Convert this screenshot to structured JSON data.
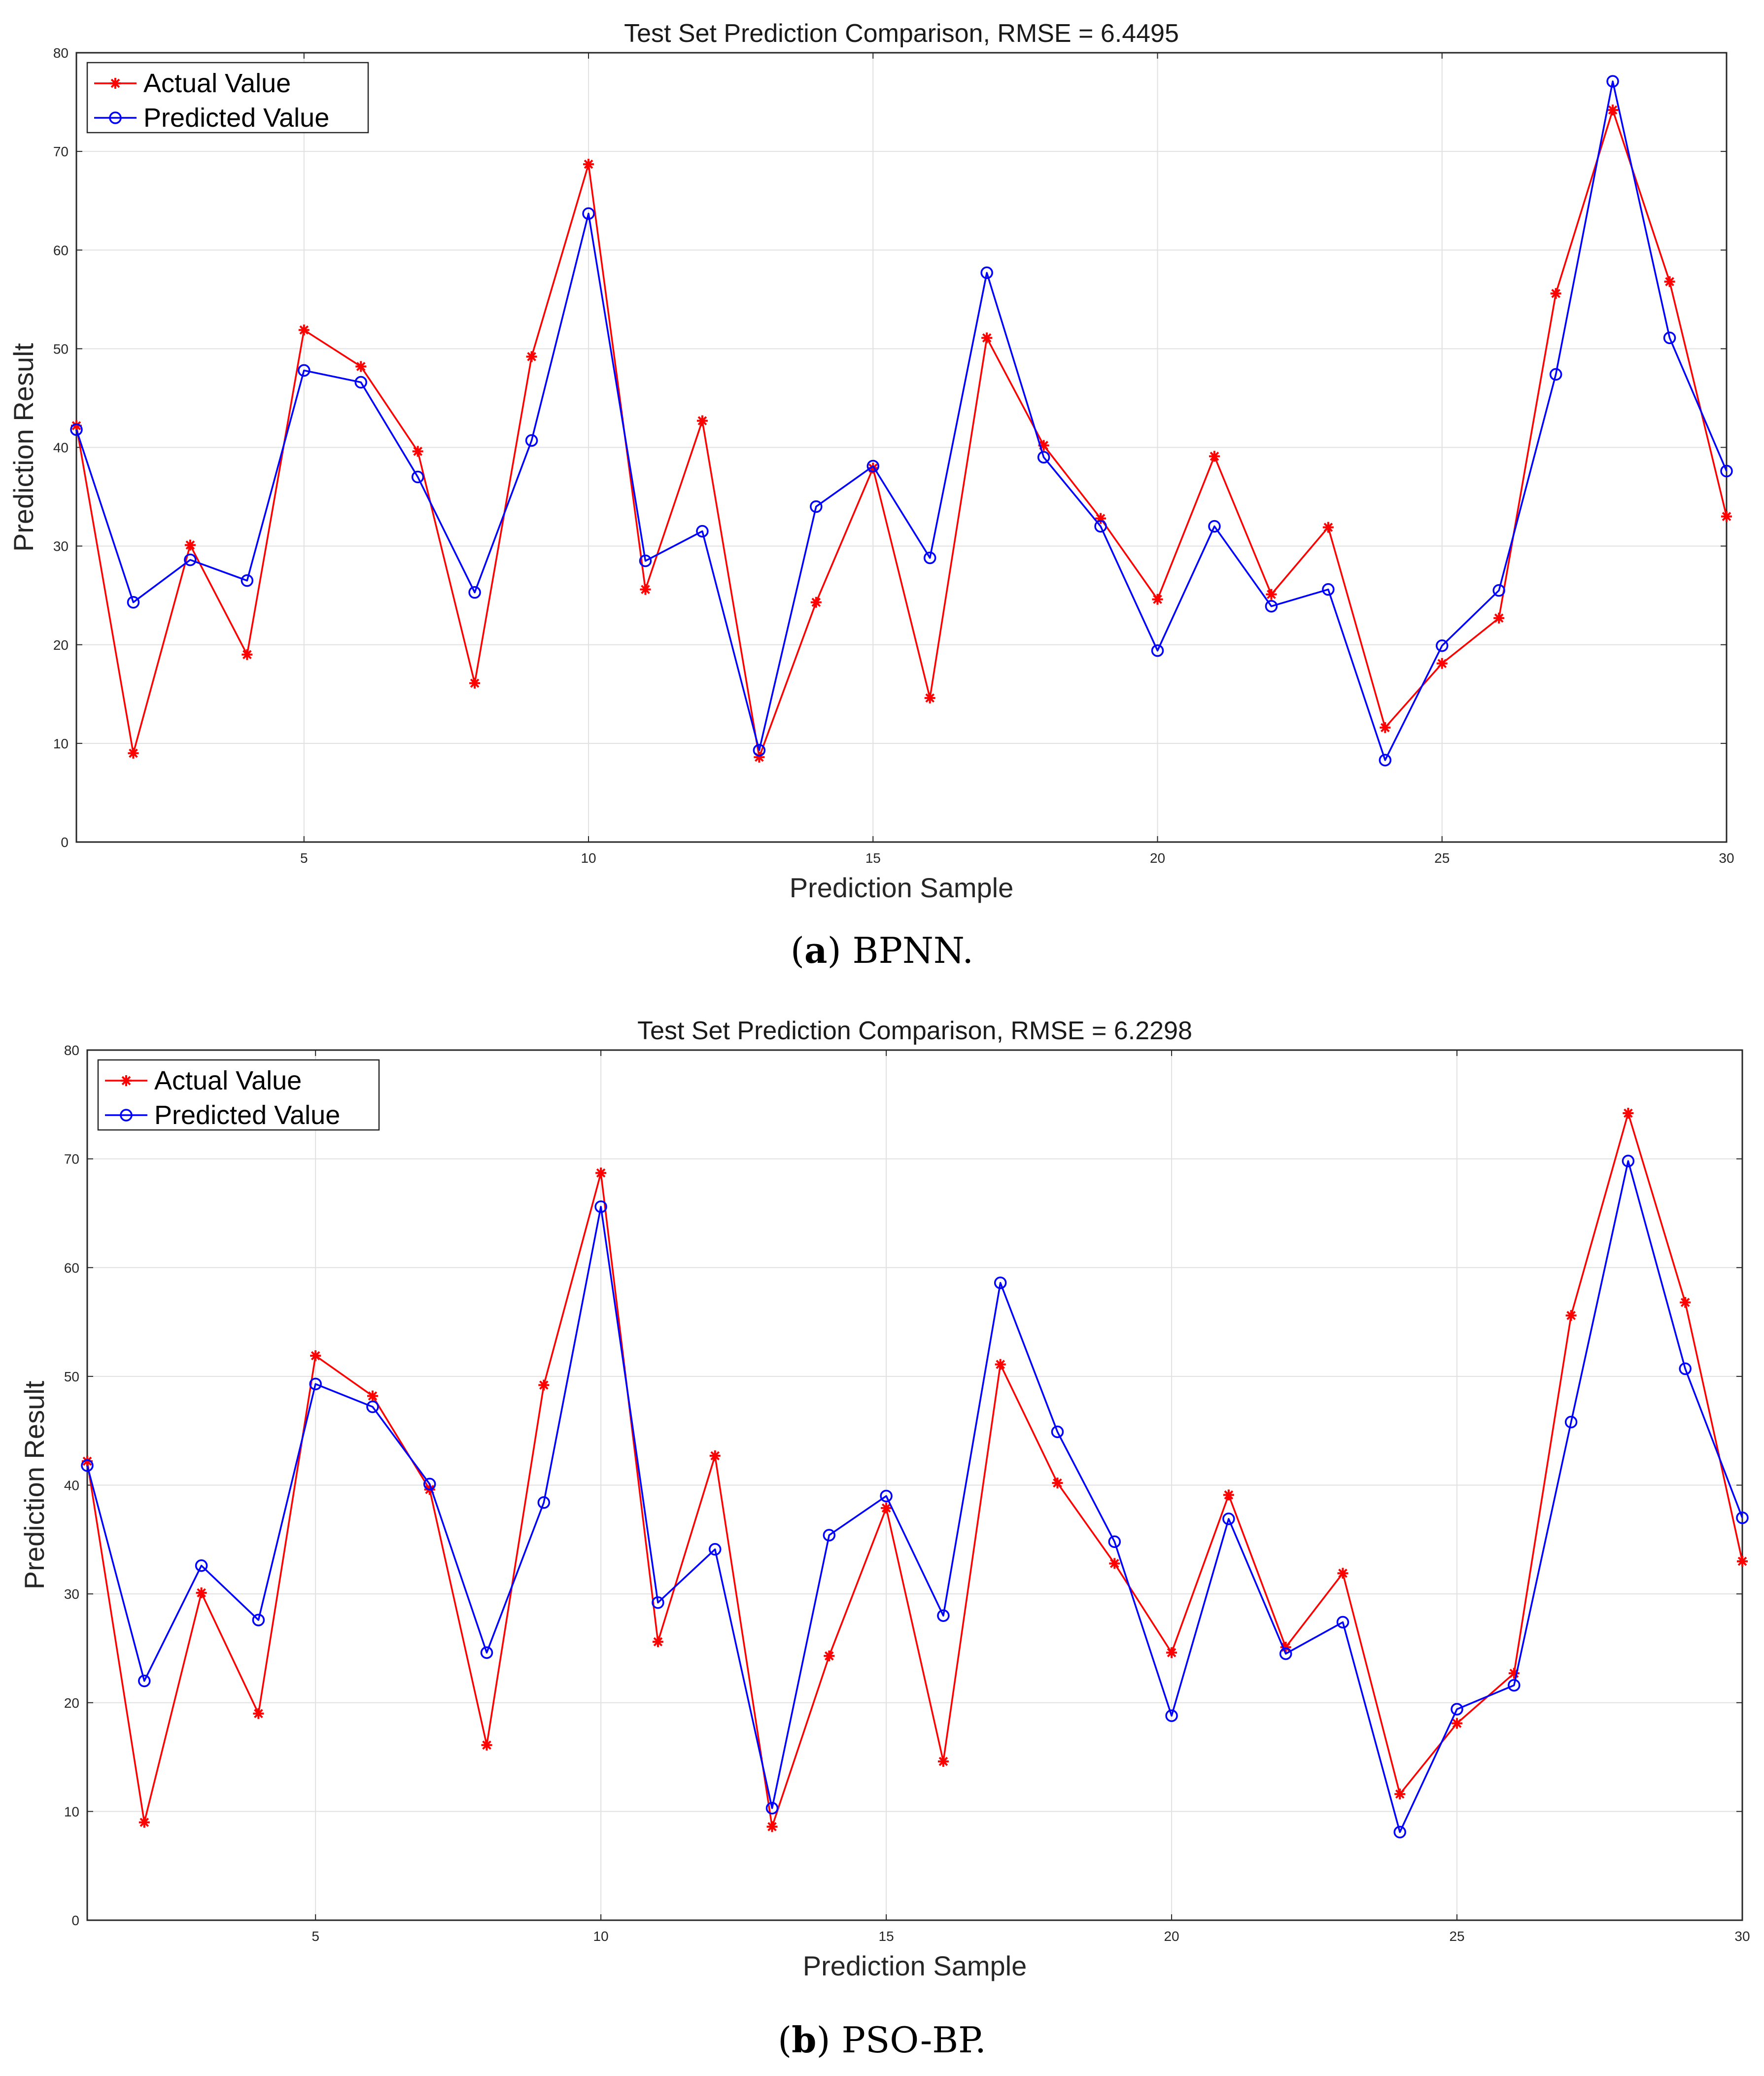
{
  "chart_data": [
    {
      "type": "line",
      "id": "a",
      "title": "Test Set Prediction Comparison, RMSE = 6.4495",
      "xlabel": "Prediction Sample",
      "ylabel": "Prediction Result",
      "xlim": [
        1,
        30
      ],
      "ylim": [
        0,
        80
      ],
      "xticks": [
        5,
        10,
        15,
        20,
        25,
        30
      ],
      "yticks": [
        0,
        10,
        20,
        30,
        40,
        50,
        60,
        70,
        80
      ],
      "grid": true,
      "legend_position": "top-left",
      "caption_letter": "a",
      "caption_text": " BPNN.",
      "x": [
        1,
        2,
        3,
        4,
        5,
        6,
        7,
        8,
        9,
        10,
        11,
        12,
        13,
        14,
        15,
        16,
        17,
        18,
        19,
        20,
        21,
        22,
        23,
        24,
        25,
        26,
        27,
        28,
        29,
        30
      ],
      "series": [
        {
          "name": "Actual Value",
          "color": "#ff0000",
          "marker": "star",
          "values": [
            42.2,
            9.0,
            30.1,
            19.0,
            51.9,
            48.2,
            39.6,
            16.1,
            49.2,
            68.7,
            25.6,
            42.7,
            8.6,
            24.3,
            37.9,
            14.6,
            51.1,
            40.2,
            32.8,
            24.6,
            39.1,
            25.1,
            31.9,
            11.6,
            18.1,
            22.7,
            55.6,
            74.2,
            56.8,
            33.0
          ]
        },
        {
          "name": "Predicted Value",
          "color": "#0000ff",
          "marker": "circle",
          "values": [
            41.8,
            24.3,
            28.6,
            26.5,
            47.8,
            46.6,
            37.0,
            25.3,
            40.7,
            63.7,
            28.5,
            31.5,
            9.3,
            34.0,
            38.1,
            28.8,
            57.7,
            39.0,
            32.0,
            19.4,
            32.0,
            23.9,
            25.6,
            8.3,
            19.9,
            25.5,
            47.4,
            77.1,
            51.1,
            37.6
          ]
        }
      ]
    },
    {
      "type": "line",
      "id": "b",
      "title": "Test Set Prediction Comparison, RMSE = 6.2298",
      "xlabel": "Prediction Sample",
      "ylabel": "Prediction Result",
      "xlim": [
        1,
        30
      ],
      "ylim": [
        0,
        80
      ],
      "xticks": [
        5,
        10,
        15,
        20,
        25,
        30
      ],
      "yticks": [
        0,
        10,
        20,
        30,
        40,
        50,
        60,
        70,
        80
      ],
      "grid": true,
      "legend_position": "top-left",
      "caption_letter": "b",
      "caption_text": " PSO-BP.",
      "x": [
        1,
        2,
        3,
        4,
        5,
        6,
        7,
        8,
        9,
        10,
        11,
        12,
        13,
        14,
        15,
        16,
        17,
        18,
        19,
        20,
        21,
        22,
        23,
        24,
        25,
        26,
        27,
        28,
        29,
        30
      ],
      "series": [
        {
          "name": "Actual Value",
          "color": "#ff0000",
          "marker": "star",
          "values": [
            42.2,
            9.0,
            30.1,
            19.0,
            51.9,
            48.2,
            39.6,
            16.1,
            49.2,
            68.7,
            25.6,
            42.7,
            8.6,
            24.3,
            37.9,
            14.6,
            51.1,
            40.2,
            32.8,
            24.6,
            39.1,
            25.1,
            31.9,
            11.6,
            18.1,
            22.7,
            55.6,
            74.2,
            56.8,
            33.0
          ]
        },
        {
          "name": "Predicted Value",
          "color": "#0000ff",
          "marker": "circle",
          "values": [
            41.8,
            22.0,
            32.6,
            27.6,
            49.3,
            47.2,
            40.1,
            24.6,
            38.4,
            65.6,
            29.2,
            34.1,
            10.3,
            35.4,
            39.0,
            28.0,
            58.6,
            44.9,
            34.8,
            18.8,
            36.9,
            24.5,
            27.4,
            8.1,
            19.4,
            21.6,
            45.8,
            69.8,
            50.7,
            37.0
          ]
        }
      ]
    }
  ]
}
